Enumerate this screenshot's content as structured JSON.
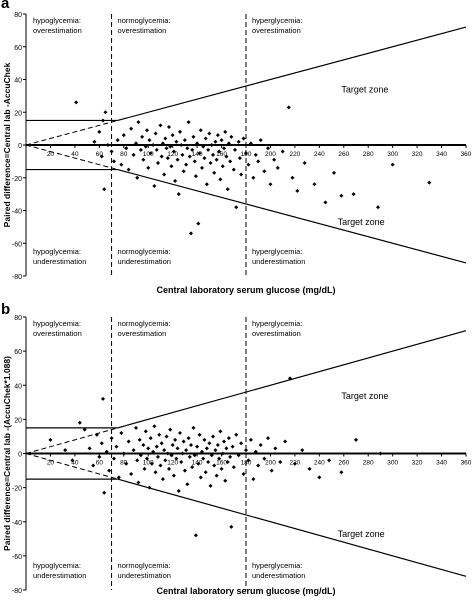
{
  "chart_data": [
    {
      "type": "scatter",
      "panel_label": "a",
      "xlabel": "Central laboratory serum glucose (mg/dL)",
      "ylabel": "Paired difference=Central lab -AccuChek",
      "xlim": [
        0,
        360
      ],
      "ylim": [
        -80,
        80
      ],
      "xticks": [
        "20",
        "40",
        "60",
        "80",
        "100",
        "120",
        "140",
        "160",
        "180",
        "200",
        "220",
        "240",
        "260",
        "280",
        "300",
        "320",
        "340",
        "360"
      ],
      "yticks": [
        "80",
        "60",
        "40",
        "20",
        "0",
        "-20",
        "-40",
        "-60",
        "-80"
      ],
      "zone_labels": [
        "Target zone",
        "Target zone"
      ],
      "region_labels": [
        {
          "line1": "hypoglycemia:",
          "line2": "overestimation"
        },
        {
          "line1": "normoglycemia:",
          "line2": "overestimation"
        },
        {
          "line1": "hyperglycemia:",
          "line2": "overestimation"
        },
        {
          "line1": "hypoglycemia:",
          "line2": "underestimation"
        },
        {
          "line1": "normoglycemia:",
          "line2": "underestimation"
        },
        {
          "line1": "hyperglycemia:",
          "line2": "underestimation"
        }
      ],
      "points": [
        [
          41,
          26
        ],
        [
          56,
          2
        ],
        [
          60,
          8
        ],
        [
          62,
          -7
        ],
        [
          63,
          15
        ],
        [
          64,
          -27
        ],
        [
          65,
          20
        ],
        [
          67,
          0
        ],
        [
          70,
          -4
        ],
        [
          72,
          -10
        ],
        [
          75,
          3
        ],
        [
          78,
          -12
        ],
        [
          80,
          6
        ],
        [
          82,
          -2
        ],
        [
          84,
          -15
        ],
        [
          86,
          10
        ],
        [
          88,
          -6
        ],
        [
          90,
          1
        ],
        [
          91,
          -20
        ],
        [
          92,
          14
        ],
        [
          94,
          -3
        ],
        [
          95,
          5
        ],
        [
          96,
          -9
        ],
        [
          98,
          -1
        ],
        [
          99,
          9
        ],
        [
          100,
          -14
        ],
        [
          101,
          3
        ],
        [
          102,
          -5
        ],
        [
          104,
          0
        ],
        [
          105,
          -25
        ],
        [
          106,
          7
        ],
        [
          107,
          -3
        ],
        [
          108,
          -11
        ],
        [
          110,
          12
        ],
        [
          111,
          -7
        ],
        [
          112,
          1
        ],
        [
          113,
          -18
        ],
        [
          114,
          4
        ],
        [
          115,
          -2
        ],
        [
          116,
          -8
        ],
        [
          117,
          11
        ],
        [
          118,
          -1
        ],
        [
          119,
          -13
        ],
        [
          120,
          6
        ],
        [
          121,
          -4
        ],
        [
          122,
          -22
        ],
        [
          123,
          2
        ],
        [
          124,
          -9
        ],
        [
          125,
          -30
        ],
        [
          126,
          8
        ],
        [
          127,
          0
        ],
        [
          128,
          -6
        ],
        [
          129,
          -16
        ],
        [
          130,
          3
        ],
        [
          131,
          -12
        ],
        [
          132,
          -2
        ],
        [
          133,
          14
        ],
        [
          134,
          -7
        ],
        [
          135,
          -54
        ],
        [
          136,
          -3
        ],
        [
          137,
          5
        ],
        [
          138,
          -10
        ],
        [
          139,
          -19
        ],
        [
          140,
          1
        ],
        [
          141,
          -48
        ],
        [
          142,
          -5
        ],
        [
          143,
          9
        ],
        [
          144,
          -14
        ],
        [
          145,
          -1
        ],
        [
          146,
          -8
        ],
        [
          147,
          4
        ],
        [
          148,
          -24
        ],
        [
          149,
          -3
        ],
        [
          150,
          7
        ],
        [
          151,
          -11
        ],
        [
          152,
          0
        ],
        [
          153,
          -6
        ],
        [
          154,
          -17
        ],
        [
          155,
          2
        ],
        [
          156,
          -9
        ],
        [
          157,
          6
        ],
        [
          158,
          -4
        ],
        [
          159,
          -21
        ],
        [
          160,
          3
        ],
        [
          161,
          -13
        ],
        [
          162,
          -2
        ],
        [
          163,
          8
        ],
        [
          164,
          -7
        ],
        [
          165,
          -27
        ],
        [
          166,
          1
        ],
        [
          167,
          -10
        ],
        [
          168,
          5
        ],
        [
          170,
          -15
        ],
        [
          171,
          -3
        ],
        [
          172,
          -38
        ],
        [
          174,
          2
        ],
        [
          175,
          -8
        ],
        [
          176,
          -18
        ],
        [
          178,
          4
        ],
        [
          180,
          -5
        ],
        [
          182,
          -12
        ],
        [
          184,
          1
        ],
        [
          186,
          -20
        ],
        [
          188,
          -6
        ],
        [
          190,
          -10
        ],
        [
          192,
          3
        ],
        [
          195,
          -16
        ],
        [
          198,
          -2
        ],
        [
          200,
          -24
        ],
        [
          203,
          -9
        ],
        [
          206,
          -14
        ],
        [
          210,
          -4
        ],
        [
          215,
          23
        ],
        [
          218,
          -20
        ],
        [
          222,
          -28
        ],
        [
          228,
          -11
        ],
        [
          236,
          -24
        ],
        [
          245,
          -35
        ],
        [
          252,
          -17
        ],
        [
          258,
          -31
        ],
        [
          268,
          -30
        ],
        [
          288,
          -38
        ],
        [
          300,
          -12
        ],
        [
          330,
          -23
        ]
      ]
    },
    {
      "type": "scatter",
      "panel_label": "b",
      "xlabel": "Central laboratory serum glucose (mg/dL)",
      "ylabel": "Paired difference=Central lab -(AccuChek*1.088)",
      "xlim": [
        0,
        360
      ],
      "ylim": [
        -80,
        80
      ],
      "xticks": [
        "20",
        "40",
        "60",
        "80",
        "100",
        "120",
        "140",
        "160",
        "180",
        "200",
        "220",
        "240",
        "260",
        "280",
        "300",
        "320",
        "340",
        "360"
      ],
      "yticks": [
        "80",
        "60",
        "40",
        "20",
        "0",
        "-20",
        "-40",
        "-60",
        "-80"
      ],
      "zone_labels": [
        "Target zone",
        "Target zone"
      ],
      "region_labels": [
        {
          "line1": "hypoglycemia:",
          "line2": "overestimation"
        },
        {
          "line1": "normoglycemia:",
          "line2": "overestimation"
        },
        {
          "line1": "hyperglycemia:",
          "line2": "overestimation"
        },
        {
          "line1": "hypoglycemia:",
          "line2": "underestimation"
        },
        {
          "line1": "normoglycemia:",
          "line2": "underestimation"
        },
        {
          "line1": "hyperglycemia:",
          "line2": "underestimation"
        }
      ],
      "points": [
        [
          20,
          8
        ],
        [
          32,
          2
        ],
        [
          38,
          -4
        ],
        [
          44,
          18
        ],
        [
          48,
          14
        ],
        [
          52,
          3
        ],
        [
          55,
          -7
        ],
        [
          58,
          11
        ],
        [
          60,
          -2
        ],
        [
          62,
          6
        ],
        [
          63,
          32
        ],
        [
          64,
          -23
        ],
        [
          66,
          1
        ],
        [
          68,
          -10
        ],
        [
          70,
          9
        ],
        [
          72,
          -3
        ],
        [
          74,
          4
        ],
        [
          76,
          -14
        ],
        [
          78,
          12
        ],
        [
          80,
          0
        ],
        [
          82,
          -6
        ],
        [
          84,
          7
        ],
        [
          86,
          -12
        ],
        [
          88,
          2
        ],
        [
          90,
          15
        ],
        [
          91,
          -4
        ],
        [
          92,
          -17
        ],
        [
          93,
          8
        ],
        [
          94,
          -1
        ],
        [
          96,
          5
        ],
        [
          97,
          -9
        ],
        [
          98,
          13
        ],
        [
          99,
          -3
        ],
        [
          100,
          3
        ],
        [
          101,
          -20
        ],
        [
          102,
          9
        ],
        [
          103,
          -6
        ],
        [
          104,
          1
        ],
        [
          105,
          16
        ],
        [
          106,
          -11
        ],
        [
          107,
          4
        ],
        [
          108,
          -2
        ],
        [
          109,
          11
        ],
        [
          110,
          -7
        ],
        [
          111,
          6
        ],
        [
          112,
          -15
        ],
        [
          113,
          2
        ],
        [
          114,
          -4
        ],
        [
          115,
          10
        ],
        [
          116,
          0
        ],
        [
          117,
          -9
        ],
        [
          118,
          14
        ],
        [
          119,
          -1
        ],
        [
          120,
          5
        ],
        [
          121,
          -13
        ],
        [
          122,
          8
        ],
        [
          123,
          -3
        ],
        [
          124,
          3
        ],
        [
          125,
          -22
        ],
        [
          126,
          12
        ],
        [
          127,
          -5
        ],
        [
          128,
          0
        ],
        [
          129,
          7
        ],
        [
          130,
          -10
        ],
        [
          131,
          2
        ],
        [
          132,
          -18
        ],
        [
          133,
          9
        ],
        [
          134,
          -2
        ],
        [
          135,
          5
        ],
        [
          136,
          -8
        ],
        [
          137,
          15
        ],
        [
          138,
          -1
        ],
        [
          139,
          -48
        ],
        [
          140,
          4
        ],
        [
          141,
          -6
        ],
        [
          142,
          11
        ],
        [
          143,
          -14
        ],
        [
          144,
          1
        ],
        [
          145,
          -3
        ],
        [
          146,
          8
        ],
        [
          147,
          -11
        ],
        [
          148,
          3
        ],
        [
          149,
          -5
        ],
        [
          150,
          6
        ],
        [
          151,
          -19
        ],
        [
          152,
          -1
        ],
        [
          153,
          10
        ],
        [
          154,
          -7
        ],
        [
          155,
          2
        ],
        [
          156,
          -13
        ],
        [
          157,
          5
        ],
        [
          158,
          -3
        ],
        [
          159,
          13
        ],
        [
          160,
          -9
        ],
        [
          161,
          0
        ],
        [
          162,
          7
        ],
        [
          163,
          -16
        ],
        [
          164,
          3
        ],
        [
          165,
          -5
        ],
        [
          166,
          9
        ],
        [
          167,
          -2
        ],
        [
          168,
          -43
        ],
        [
          169,
          4
        ],
        [
          170,
          -8
        ],
        [
          172,
          11
        ],
        [
          174,
          -1
        ],
        [
          176,
          6
        ],
        [
          178,
          -12
        ],
        [
          180,
          2
        ],
        [
          182,
          -4
        ],
        [
          184,
          8
        ],
        [
          186,
          -15
        ],
        [
          188,
          1
        ],
        [
          190,
          -7
        ],
        [
          192,
          5
        ],
        [
          195,
          -3
        ],
        [
          198,
          9
        ],
        [
          201,
          -10
        ],
        [
          204,
          3
        ],
        [
          208,
          -5
        ],
        [
          212,
          7
        ],
        [
          216,
          44
        ],
        [
          220,
          -6
        ],
        [
          226,
          2
        ],
        [
          232,
          -9
        ],
        [
          240,
          -14
        ],
        [
          248,
          -4
        ],
        [
          258,
          -11
        ],
        [
          270,
          8
        ],
        [
          290,
          0
        ]
      ]
    }
  ]
}
